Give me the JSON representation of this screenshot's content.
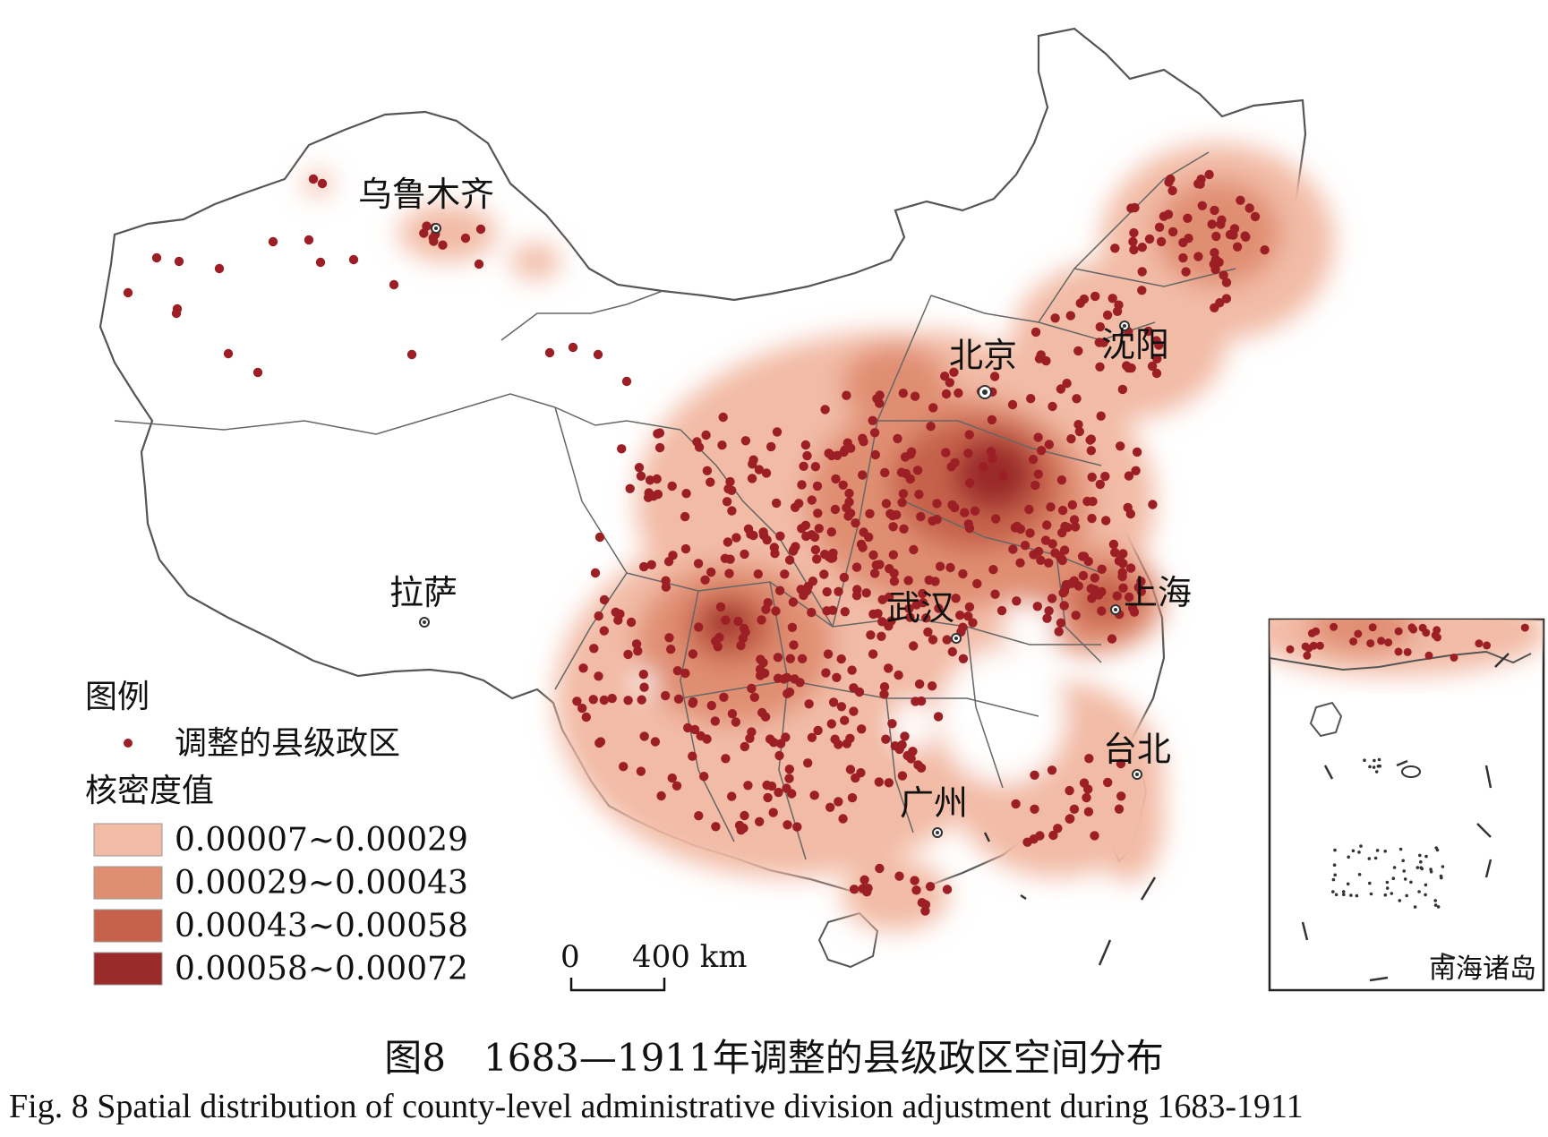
{
  "cities": [
    {
      "name": "乌鲁木齐"
    },
    {
      "name": "北京"
    },
    {
      "name": "沈阳"
    },
    {
      "name": "拉萨"
    },
    {
      "name": "武汉"
    },
    {
      "name": "上海"
    },
    {
      "name": "台北"
    },
    {
      "name": "广州"
    }
  ],
  "legend": {
    "title": "图例",
    "point_label": "调整的县级政区",
    "density_title": "核密度值",
    "classes": [
      {
        "range": "0.00007~0.00029",
        "color": "#f2bba6"
      },
      {
        "range": "0.00029~0.00043",
        "color": "#e08e72"
      },
      {
        "range": "0.00043~0.00058",
        "color": "#c6624c"
      },
      {
        "range": "0.00058~0.00072",
        "color": "#9b2a2a"
      }
    ],
    "point_color": "#9b1f24"
  },
  "scale": {
    "zero": "0",
    "distance": "400 km"
  },
  "inset": {
    "label": "南海诸岛"
  },
  "caption": {
    "cn": "图8　1683—1911年调整的县级政区空间分布",
    "en": "Fig. 8   Spatial distribution of county-level administrative division adjustment during 1683-1911"
  }
}
